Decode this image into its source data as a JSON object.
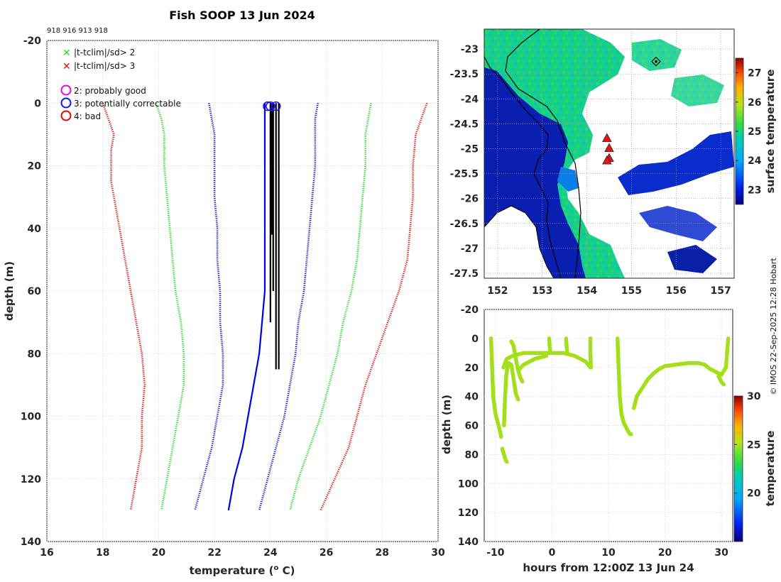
{
  "header": {
    "title": "Fish SOOP 13 Jun 2024",
    "ids": "918 916 913 918",
    "credit": "© IMOS 22-Sep-2025 12:28 Hobart"
  },
  "legend": {
    "flag_2sd": "|t-tclim|/sd> 2",
    "flag_3sd": "|t-tclim|/sd> 3",
    "qc_good": "2: probably good",
    "qc_correctable": "3: potentially correctable",
    "qc_bad": "4: bad"
  },
  "colors": {
    "sd2": "#22dd22",
    "sd3": "#dd1111",
    "clim": "#1111cc",
    "obs_blue": "#0000ee",
    "obs_black": "#000000",
    "qc_good": "#ee00ee",
    "qc_correctable": "#1111ff",
    "qc_bad": "#ee0000",
    "trace": "#a4e01a",
    "land": "#ffffff"
  },
  "chart_data": [
    {
      "type": "line",
      "panel": "temperature-profile",
      "title": "Fish SOOP 13 Jun 2024",
      "xlabel": "temperature (°C)",
      "ylabel": "depth (m)",
      "xlim": [
        16,
        30
      ],
      "ylim": [
        -20,
        140
      ],
      "y_reversed": true,
      "xticks": [
        "16",
        "18",
        "20",
        "22",
        "24",
        "26",
        "28",
        "30"
      ],
      "yticks": [
        "-20",
        "0",
        "20",
        "40",
        "60",
        "80",
        "100",
        "120",
        "140"
      ],
      "grid": true,
      "series": [
        {
          "name": "clim -3sd",
          "style": "dotted",
          "color": "#dd1111",
          "depth": [
            0,
            5,
            10,
            15,
            20,
            25,
            30,
            40,
            50,
            60,
            70,
            80,
            90,
            100,
            110,
            120,
            130
          ],
          "temp": [
            18.0,
            18.2,
            18.4,
            18.3,
            18.3,
            18.3,
            18.4,
            18.6,
            18.8,
            19.0,
            19.2,
            19.4,
            19.5,
            19.4,
            19.4,
            19.2,
            19.0
          ]
        },
        {
          "name": "clim -2sd",
          "style": "dotted",
          "color": "#22dd22",
          "depth": [
            0,
            5,
            10,
            20,
            30,
            40,
            50,
            60,
            70,
            80,
            90,
            100,
            110,
            120,
            130
          ],
          "temp": [
            19.9,
            20.1,
            20.2,
            20.2,
            20.3,
            20.4,
            20.5,
            20.6,
            20.8,
            20.9,
            20.9,
            20.7,
            20.5,
            20.3,
            20.1
          ]
        },
        {
          "name": "clim mean",
          "style": "dotted",
          "color": "#1111cc",
          "depth": [
            0,
            5,
            10,
            20,
            30,
            40,
            50,
            60,
            70,
            80,
            90,
            100,
            110,
            120,
            130
          ],
          "temp": [
            21.8,
            21.9,
            22.0,
            22.0,
            22.0,
            22.1,
            22.1,
            22.2,
            22.2,
            22.3,
            22.3,
            22.1,
            21.9,
            21.6,
            21.3
          ]
        },
        {
          "name": "clim +1sd",
          "style": "dotted",
          "color": "#1111cc",
          "depth": [
            0,
            5,
            10,
            20,
            30,
            40,
            50,
            60,
            70,
            80,
            90,
            100,
            110,
            120,
            130
          ],
          "temp": [
            25.7,
            25.6,
            25.6,
            25.6,
            25.5,
            25.4,
            25.3,
            25.2,
            25.0,
            24.9,
            24.7,
            24.5,
            24.2,
            23.9,
            23.6
          ]
        },
        {
          "name": "clim +2sd",
          "style": "dotted",
          "color": "#22dd22",
          "depth": [
            0,
            5,
            10,
            20,
            30,
            40,
            50,
            60,
            70,
            80,
            90,
            100,
            110,
            120,
            130
          ],
          "temp": [
            27.6,
            27.5,
            27.4,
            27.4,
            27.3,
            27.2,
            27.1,
            26.9,
            26.6,
            26.4,
            26.1,
            25.8,
            25.4,
            25.0,
            24.7
          ]
        },
        {
          "name": "clim +3sd",
          "style": "dotted",
          "color": "#dd1111",
          "depth": [
            0,
            5,
            10,
            20,
            30,
            40,
            50,
            60,
            70,
            80,
            90,
            100,
            110,
            120,
            130
          ],
          "temp": [
            29.6,
            29.4,
            29.2,
            29.1,
            29.1,
            29.0,
            28.9,
            28.6,
            28.2,
            27.8,
            27.4,
            27.1,
            26.8,
            26.3,
            25.8
          ]
        },
        {
          "name": "observed (blue)",
          "style": "solid",
          "color": "#0000ee",
          "depth": [
            0,
            10,
            20,
            30,
            40,
            50,
            60,
            70,
            80,
            90,
            100,
            110,
            120,
            130
          ],
          "temp": [
            23.8,
            23.8,
            23.8,
            23.8,
            23.8,
            23.8,
            23.8,
            23.7,
            23.6,
            23.4,
            23.2,
            23.0,
            22.7,
            22.5
          ]
        },
        {
          "name": "observed (black)",
          "style": "solid",
          "color": "#000000",
          "depth": [
            0,
            10,
            20,
            30,
            40,
            50,
            60,
            70,
            80,
            85
          ],
          "temp": [
            24.2,
            24.2,
            24.2,
            24.2,
            24.2,
            24.2,
            24.2,
            24.2,
            24.2,
            24.2
          ]
        }
      ],
      "qc_markers": [
        {
          "temp": 23.9,
          "depth": 1,
          "flag": "3"
        },
        {
          "temp": 24.0,
          "depth": 1,
          "flag": "3"
        },
        {
          "temp": 24.2,
          "depth": 1,
          "flag": "3"
        }
      ]
    },
    {
      "type": "heatmap",
      "panel": "sst-map",
      "colorbar_label": "surface temperature",
      "colorbar_range": [
        22.5,
        27.5
      ],
      "colorbar_ticks": [
        "23",
        "24",
        "25",
        "26",
        "27"
      ],
      "xlim": [
        151.7,
        157.3
      ],
      "ylim": [
        -27.6,
        -22.6
      ],
      "xticks": [
        "152",
        "153",
        "154",
        "155",
        "156",
        "157"
      ],
      "yticks": [
        "-23",
        "-23.5",
        "-24",
        "-24.5",
        "-25",
        "-25.5",
        "-26",
        "-26.5",
        "-27",
        "-27.5"
      ],
      "stations": [
        {
          "lon": 154.45,
          "lat": -24.8
        },
        {
          "lon": 154.5,
          "lat": -25.0
        },
        {
          "lon": 154.5,
          "lat": -25.2
        },
        {
          "lon": 154.45,
          "lat": -25.25
        }
      ],
      "diamond_marker": {
        "lon": 155.55,
        "lat": -23.25
      }
    },
    {
      "type": "scatter",
      "panel": "depth-time",
      "xlabel": "hours from 12:00Z 13 Jun 24",
      "ylabel": "depth (m)",
      "colorbar_label": "temperature",
      "colorbar_range": [
        15,
        30
      ],
      "colorbar_ticks": [
        "20",
        "25",
        "30"
      ],
      "xlim": [
        -12,
        32
      ],
      "ylim": [
        -20,
        140
      ],
      "y_reversed": true,
      "xticks": [
        "-10",
        "0",
        "10",
        "20",
        "30"
      ],
      "yticks": [
        "-20",
        "0",
        "20",
        "40",
        "60",
        "80",
        "100",
        "120",
        "140"
      ],
      "segments": [
        {
          "hours": [
            -10.8,
            -10.6,
            -10.4,
            -10.0,
            -9.6,
            -9.2,
            -9.0
          ],
          "depth": [
            0,
            20,
            40,
            52,
            58,
            64,
            68
          ]
        },
        {
          "hours": [
            -8.8,
            -8.5,
            -8.2,
            -8.0
          ],
          "depth": [
            76,
            80,
            84,
            85
          ]
        },
        {
          "hours": [
            -8.5,
            -8.3,
            -8.1,
            -7.9,
            -7.6,
            -7.2,
            -6.8,
            -6.4,
            -6.0
          ],
          "depth": [
            60,
            40,
            26,
            20,
            17,
            18,
            28,
            38,
            42
          ]
        },
        {
          "hours": [
            -8.6,
            -8,
            -7,
            -6,
            -5,
            -4,
            -3,
            -2,
            -1,
            0,
            1,
            2,
            3,
            4,
            5,
            6,
            6.8
          ],
          "depth": [
            20,
            14,
            12,
            11,
            10,
            10,
            10,
            10,
            10,
            10,
            10,
            10,
            11,
            12,
            14,
            16,
            20
          ]
        },
        {
          "hours": [
            -7.2,
            -6.8,
            -6.4,
            -6.0,
            -5.6,
            -5.2
          ],
          "depth": [
            2,
            5,
            14,
            22,
            27,
            30
          ]
        },
        {
          "hours": [
            -6,
            -5.5,
            -5,
            -4,
            -3,
            -2,
            -1
          ],
          "depth": [
            22,
            20,
            18,
            16,
            14,
            13,
            12
          ]
        },
        {
          "hours": [
            -0.5,
            -0.4,
            -0.3
          ],
          "depth": [
            0,
            6,
            10
          ]
        },
        {
          "hours": [
            2.5,
            2.6,
            2.7
          ],
          "depth": [
            0,
            6,
            10
          ]
        },
        {
          "hours": [
            6.8,
            6.8,
            6.9
          ],
          "depth": [
            0,
            10,
            20
          ]
        },
        {
          "hours": [
            11.6,
            11.8,
            12.0,
            12.3,
            12.7,
            13.2,
            13.8,
            14.0
          ],
          "depth": [
            0,
            20,
            40,
            52,
            58,
            62,
            66,
            66
          ]
        },
        {
          "hours": [
            14.5,
            15,
            16,
            17,
            18,
            19,
            20,
            22,
            24,
            26,
            27,
            28,
            29,
            30,
            30.8,
            31.2
          ],
          "depth": [
            48,
            40,
            34,
            28,
            24,
            21,
            19,
            18,
            17,
            17,
            18,
            21,
            23,
            25,
            20,
            0
          ]
        },
        {
          "hours": [
            29.5,
            30.0,
            30.5
          ],
          "depth": [
            26,
            30,
            32
          ]
        }
      ]
    }
  ]
}
